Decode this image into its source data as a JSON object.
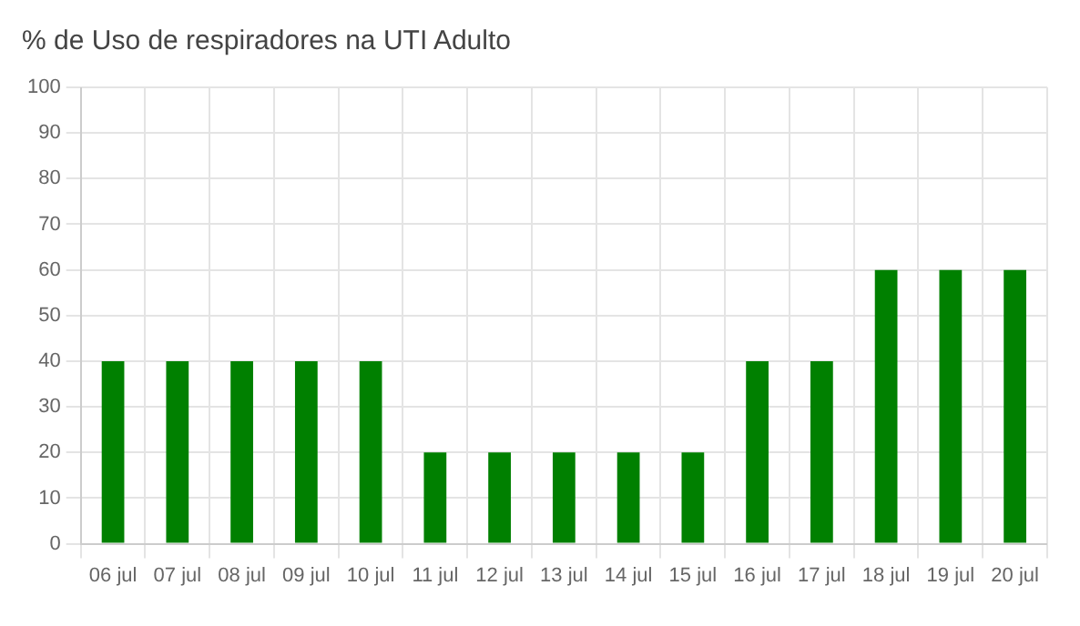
{
  "chart_data": {
    "type": "bar",
    "title": "% de Uso de respiradores na UTI Adulto",
    "categories": [
      "06 jul",
      "07 jul",
      "08 jul",
      "09 jul",
      "10 jul",
      "11 jul",
      "12 jul",
      "13 jul",
      "14 jul",
      "15 jul",
      "16 jul",
      "17 jul",
      "18 jul",
      "19 jul",
      "20 jul"
    ],
    "values": [
      40,
      40,
      40,
      40,
      40,
      20,
      20,
      20,
      20,
      20,
      40,
      40,
      60,
      60,
      60
    ],
    "color": "#008000",
    "ylim": [
      0,
      100
    ],
    "yticks": [
      0,
      10,
      20,
      30,
      40,
      50,
      60,
      70,
      80,
      90,
      100
    ],
    "grid": true
  }
}
